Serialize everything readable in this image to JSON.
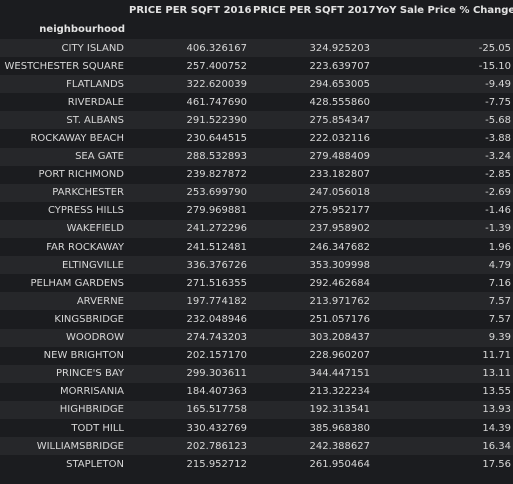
{
  "table": {
    "columns": [
      "PRICE PER SQFT 2016",
      "PRICE PER SQFT 2017",
      "YoY Sale Price % Change"
    ],
    "index_name": "neighbourhood",
    "rows": [
      {
        "name": "CITY ISLAND",
        "v2016": "406.326167",
        "v2017": "324.925203",
        "pct": "-25.05"
      },
      {
        "name": "WESTCHESTER SQUARE",
        "v2016": "257.400752",
        "v2017": "223.639707",
        "pct": "-15.10"
      },
      {
        "name": "FLATLANDS",
        "v2016": "322.620039",
        "v2017": "294.653005",
        "pct": "-9.49"
      },
      {
        "name": "RIVERDALE",
        "v2016": "461.747690",
        "v2017": "428.555860",
        "pct": "-7.75"
      },
      {
        "name": "ST. ALBANS",
        "v2016": "291.522390",
        "v2017": "275.854347",
        "pct": "-5.68"
      },
      {
        "name": "ROCKAWAY BEACH",
        "v2016": "230.644515",
        "v2017": "222.032116",
        "pct": "-3.88"
      },
      {
        "name": "SEA GATE",
        "v2016": "288.532893",
        "v2017": "279.488409",
        "pct": "-3.24"
      },
      {
        "name": "PORT RICHMOND",
        "v2016": "239.827872",
        "v2017": "233.182807",
        "pct": "-2.85"
      },
      {
        "name": "PARKCHESTER",
        "v2016": "253.699790",
        "v2017": "247.056018",
        "pct": "-2.69"
      },
      {
        "name": "CYPRESS HILLS",
        "v2016": "279.969881",
        "v2017": "275.952177",
        "pct": "-1.46"
      },
      {
        "name": "WAKEFIELD",
        "v2016": "241.272296",
        "v2017": "237.958902",
        "pct": "-1.39"
      },
      {
        "name": "FAR ROCKAWAY",
        "v2016": "241.512481",
        "v2017": "246.347682",
        "pct": "1.96"
      },
      {
        "name": "ELTINGVILLE",
        "v2016": "336.376726",
        "v2017": "353.309998",
        "pct": "4.79"
      },
      {
        "name": "PELHAM GARDENS",
        "v2016": "271.516355",
        "v2017": "292.462684",
        "pct": "7.16"
      },
      {
        "name": "ARVERNE",
        "v2016": "197.774182",
        "v2017": "213.971762",
        "pct": "7.57"
      },
      {
        "name": "KINGSBRIDGE",
        "v2016": "232.048946",
        "v2017": "251.057176",
        "pct": "7.57"
      },
      {
        "name": "WOODROW",
        "v2016": "274.743203",
        "v2017": "303.208437",
        "pct": "9.39"
      },
      {
        "name": "NEW BRIGHTON",
        "v2016": "202.157170",
        "v2017": "228.960207",
        "pct": "11.71"
      },
      {
        "name": "PRINCE'S BAY",
        "v2016": "299.303611",
        "v2017": "344.447151",
        "pct": "13.11"
      },
      {
        "name": "MORRISANIA",
        "v2016": "184.407363",
        "v2017": "213.322234",
        "pct": "13.55"
      },
      {
        "name": "HIGHBRIDGE",
        "v2016": "165.517758",
        "v2017": "192.313541",
        "pct": "13.93"
      },
      {
        "name": "TODT HILL",
        "v2016": "330.432769",
        "v2017": "385.968380",
        "pct": "14.39"
      },
      {
        "name": "WILLIAMSBRIDGE",
        "v2016": "202.786123",
        "v2017": "242.388627",
        "pct": "16.34"
      },
      {
        "name": "STAPLETON",
        "v2016": "215.952712",
        "v2017": "261.950464",
        "pct": "17.56"
      }
    ]
  }
}
